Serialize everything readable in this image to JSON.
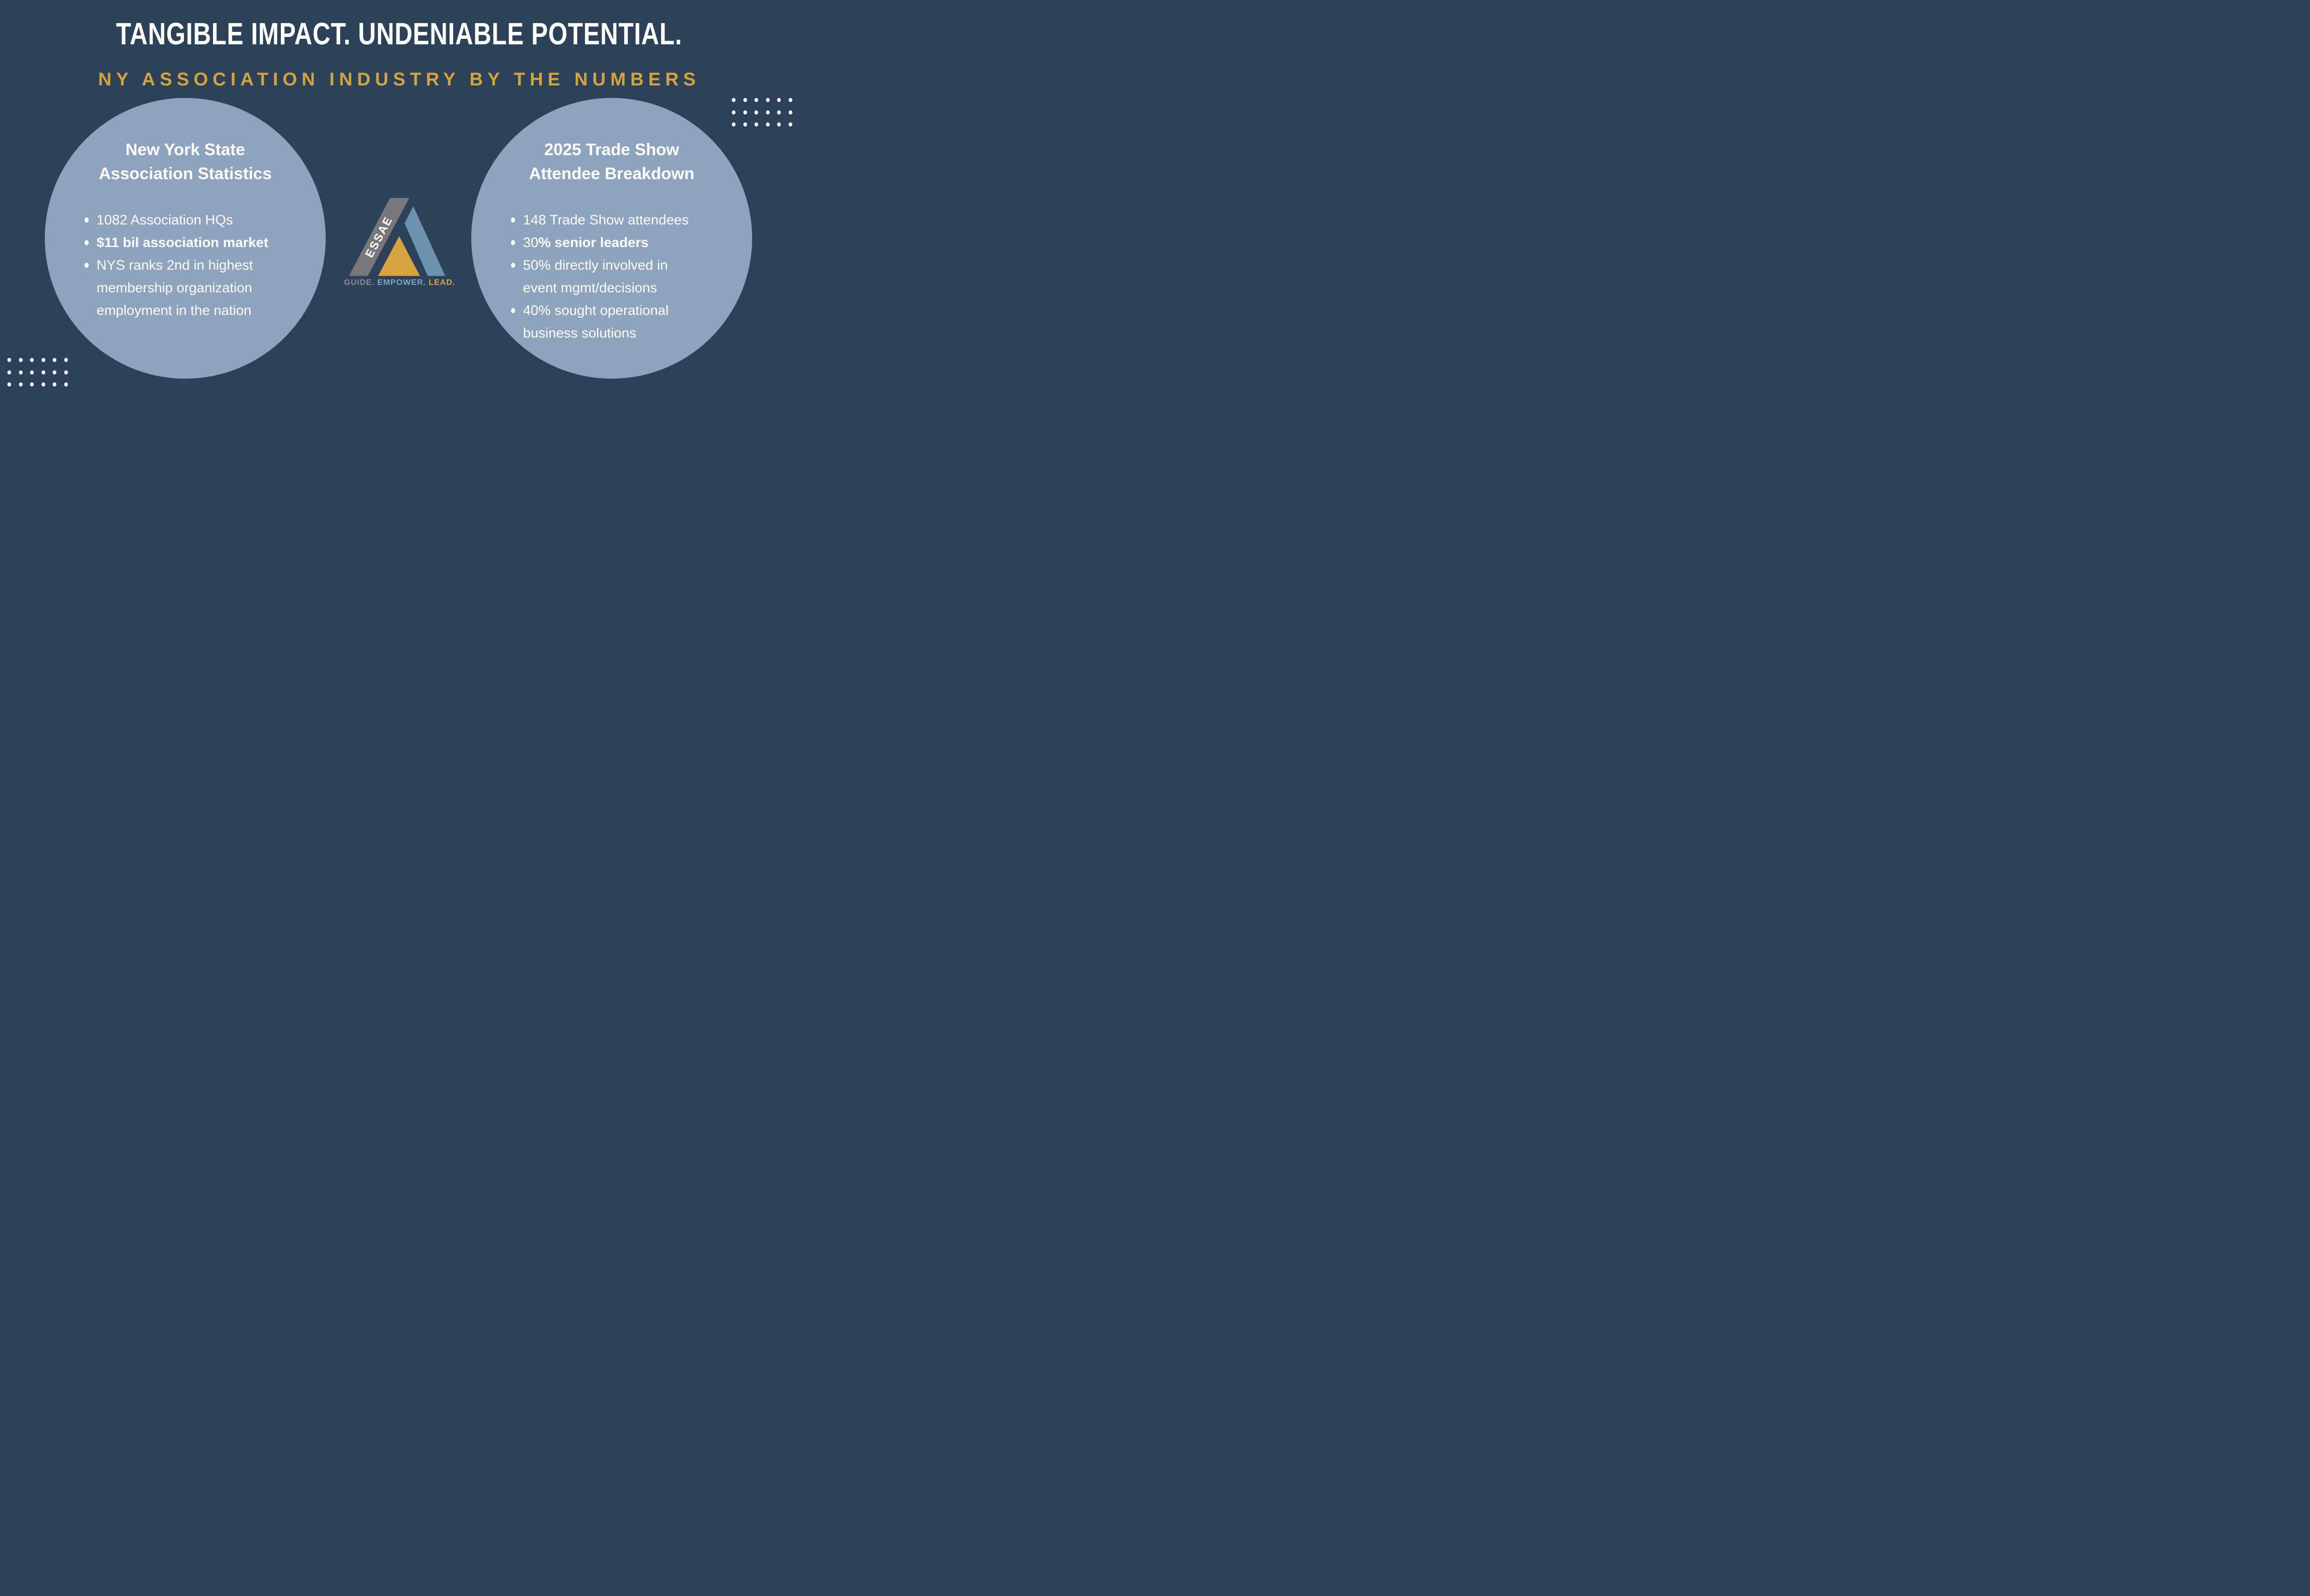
{
  "header": {
    "title": "TANGIBLE IMPACT. UNDENIABLE POTENTIAL.",
    "subtitle": "NY ASSOCIATION INDUSTRY BY THE NUMBERS"
  },
  "left_circle": {
    "heading_line1": "New York State",
    "heading_line2": "Association Statistics",
    "bullets": [
      {
        "lines": [
          [
            {
              "t": "1082 Association HQs",
              "b": false
            }
          ]
        ]
      },
      {
        "lines": [
          [
            {
              "t": "$11 bil association market",
              "b": true
            }
          ]
        ]
      },
      {
        "lines": [
          [
            {
              "t": "NYS ranks 2nd in highest",
              "b": false
            }
          ],
          [
            {
              "t": "membership organization",
              "b": false
            }
          ],
          [
            {
              "t": "employment in the nation",
              "b": false
            }
          ]
        ]
      }
    ]
  },
  "right_circle": {
    "heading_line1": "2025 Trade Show",
    "heading_line2": "Attendee Breakdown",
    "bullets": [
      {
        "lines": [
          [
            {
              "t": "148 Trade Show attendees",
              "b": false
            }
          ]
        ]
      },
      {
        "lines": [
          [
            {
              "t": "30",
              "b": false
            },
            {
              "t": "% senior leaders",
              "b": true
            }
          ]
        ]
      },
      {
        "lines": [
          [
            {
              "t": "50% directly involved in",
              "b": false
            }
          ],
          [
            {
              "t": "event mgmt/decisions",
              "b": false
            }
          ]
        ]
      },
      {
        "lines": [
          [
            {
              "t": "40% sought operational",
              "b": false
            }
          ],
          [
            {
              "t": "business solutions",
              "b": false
            }
          ]
        ]
      }
    ]
  },
  "logo": {
    "wordmark": "ESSAE",
    "tagline_guide": "GUIDE.",
    "tagline_empower": "EMPOWER.",
    "tagline_lead": "LEAD."
  },
  "decor": {
    "dot_grid_top_right": {
      "rows": 3,
      "cols": 6
    },
    "dot_grid_bottom_left": {
      "rows": 3,
      "cols": 6
    }
  },
  "colors": {
    "background_navy": "#2D4158",
    "circle_blue_gray": "#8EA3BD",
    "headline_white": "#FFFFFF",
    "accent_gold": "#D2A33F",
    "logo_gray": "#77787B",
    "logo_steel_blue": "#6D92AF",
    "logo_gold_triangle": "#D9A440",
    "tagline_gray": "#8A8B8F",
    "tagline_blue": "#7FA5BF",
    "tagline_gold": "#DBA648"
  }
}
